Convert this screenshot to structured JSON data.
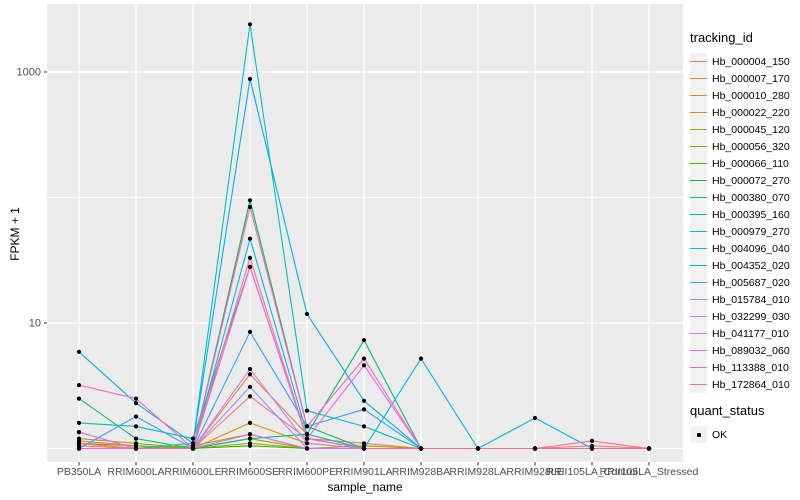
{
  "chart_data": {
    "type": "line",
    "title": "",
    "xlabel": "sample_name",
    "ylabel": "FPKM + 1",
    "y_scale": "log10",
    "panel_bg": "#EBEBEB",
    "grid_color": "#FFFFFF",
    "tick_label_color": "#4D4D4D",
    "point_color": "#000000",
    "y_gridlines": [
      1,
      10,
      100,
      1000
    ],
    "y_ticks": [
      {
        "v": 1000,
        "label": "1000"
      },
      {
        "v": 10,
        "label": "10"
      }
    ],
    "categories": [
      "PB350LA",
      "RRIM600LA",
      "RRIM600LE",
      "RRIM600SE",
      "RRIM600PE",
      "RRIM901LA",
      "RRIM928BA",
      "RRIM928LA",
      "RRIM928LE",
      "RRII105LA_Control",
      "RRII105LA_Stressed"
    ],
    "series": [
      {
        "name": "Hb_000004_150",
        "color": "#F8766D",
        "values": [
          1.15,
          1.05,
          1,
          2.6,
          1.2,
          1.1,
          1,
          1,
          1,
          1.05,
          1
        ]
      },
      {
        "name": "Hb_000007_170",
        "color": "#EA8331",
        "values": [
          1.05,
          1,
          1,
          3.9,
          1.3,
          1,
          1,
          1,
          1,
          1,
          1
        ]
      },
      {
        "name": "Hb_000010_280",
        "color": "#D89000",
        "values": [
          1.1,
          1,
          1,
          1.6,
          1.1,
          1,
          1,
          1,
          1,
          1,
          1
        ]
      },
      {
        "name": "Hb_000022_220",
        "color": "#C09B00",
        "values": [
          1,
          1,
          1.05,
          1.3,
          1,
          1,
          1,
          1,
          1,
          1,
          1
        ]
      },
      {
        "name": "Hb_000045_120",
        "color": "#A3A500",
        "values": [
          1.2,
          1.1,
          1,
          1.1,
          1,
          1.05,
          1,
          1,
          1,
          1,
          1
        ]
      },
      {
        "name": "Hb_000056_320",
        "color": "#7CAE00",
        "values": [
          1.1,
          1.05,
          1,
          1.2,
          1,
          1,
          1,
          1,
          1,
          1,
          1
        ]
      },
      {
        "name": "Hb_000066_110",
        "color": "#39B600",
        "values": [
          1,
          1,
          1,
          1.05,
          1,
          1,
          1,
          1,
          1,
          1,
          1
        ]
      },
      {
        "name": "Hb_000072_270",
        "color": "#00BB4E",
        "values": [
          1,
          1,
          1,
          95,
          1.5,
          1,
          1,
          1,
          1,
          1,
          1
        ]
      },
      {
        "name": "Hb_000380_070",
        "color": "#00BF7D",
        "values": [
          2.5,
          1.2,
          1,
          1.2,
          1.3,
          7.3,
          1,
          1,
          1,
          1,
          1
        ]
      },
      {
        "name": "Hb_000395_160",
        "color": "#00C1A3",
        "values": [
          1.6,
          1.5,
          1.2,
          28,
          1.2,
          1,
          1,
          1,
          1,
          1,
          1
        ]
      },
      {
        "name": "Hb_000979_270",
        "color": "#00BFC4",
        "values": [
          1,
          1,
          1.1,
          2400,
          2,
          1.5,
          1,
          1,
          1,
          1,
          1
        ]
      },
      {
        "name": "Hb_004096_040",
        "color": "#00BAE0",
        "values": [
          1,
          1,
          1,
          47,
          1.3,
          1,
          5.2,
          1,
          1.75,
          1,
          1
        ]
      },
      {
        "name": "Hb_004352_020",
        "color": "#00B0F6",
        "values": [
          5.9,
          2.3,
          1.1,
          880,
          11.8,
          2.4,
          1,
          1,
          1,
          1,
          1
        ]
      },
      {
        "name": "Hb_005687_020",
        "color": "#35A2FF",
        "values": [
          1,
          1.8,
          1,
          8.5,
          1.5,
          2.05,
          1,
          1,
          1,
          1,
          1
        ]
      },
      {
        "name": "Hb_015784_010",
        "color": "#9590FF",
        "values": [
          1,
          1,
          1,
          3.1,
          1,
          1,
          1,
          1,
          1,
          1,
          1
        ]
      },
      {
        "name": "Hb_032299_030",
        "color": "#C77CFF",
        "values": [
          1.35,
          1,
          1,
          4.3,
          1.1,
          1,
          1,
          1,
          1,
          1,
          1
        ]
      },
      {
        "name": "Hb_041177_010",
        "color": "#E76BF3",
        "values": [
          1.35,
          1,
          1,
          1.3,
          1,
          1,
          1,
          1,
          1,
          1,
          1
        ]
      },
      {
        "name": "Hb_089032_060",
        "color": "#FA62DB",
        "values": [
          1,
          1,
          1,
          28,
          1.2,
          4.6,
          1,
          1,
          1,
          1,
          1
        ]
      },
      {
        "name": "Hb_113388_010",
        "color": "#FF62BC",
        "values": [
          3.2,
          2.5,
          1,
          84,
          1.5,
          5.2,
          1,
          1,
          1,
          1,
          1
        ]
      },
      {
        "name": "Hb_172864_010",
        "color": "#FF6A98",
        "values": [
          1.1,
          1,
          1,
          33,
          1.2,
          1,
          1,
          1,
          1,
          1.15,
          1
        ]
      }
    ],
    "legend": {
      "tracking_title": "tracking_id",
      "quant_title": "quant_status",
      "quant_items": [
        {
          "label": "OK"
        }
      ],
      "legend_position": "right"
    },
    "layout": {
      "grid": "on",
      "ylim_log10": [
        -0.11,
        3.54
      ]
    }
  }
}
